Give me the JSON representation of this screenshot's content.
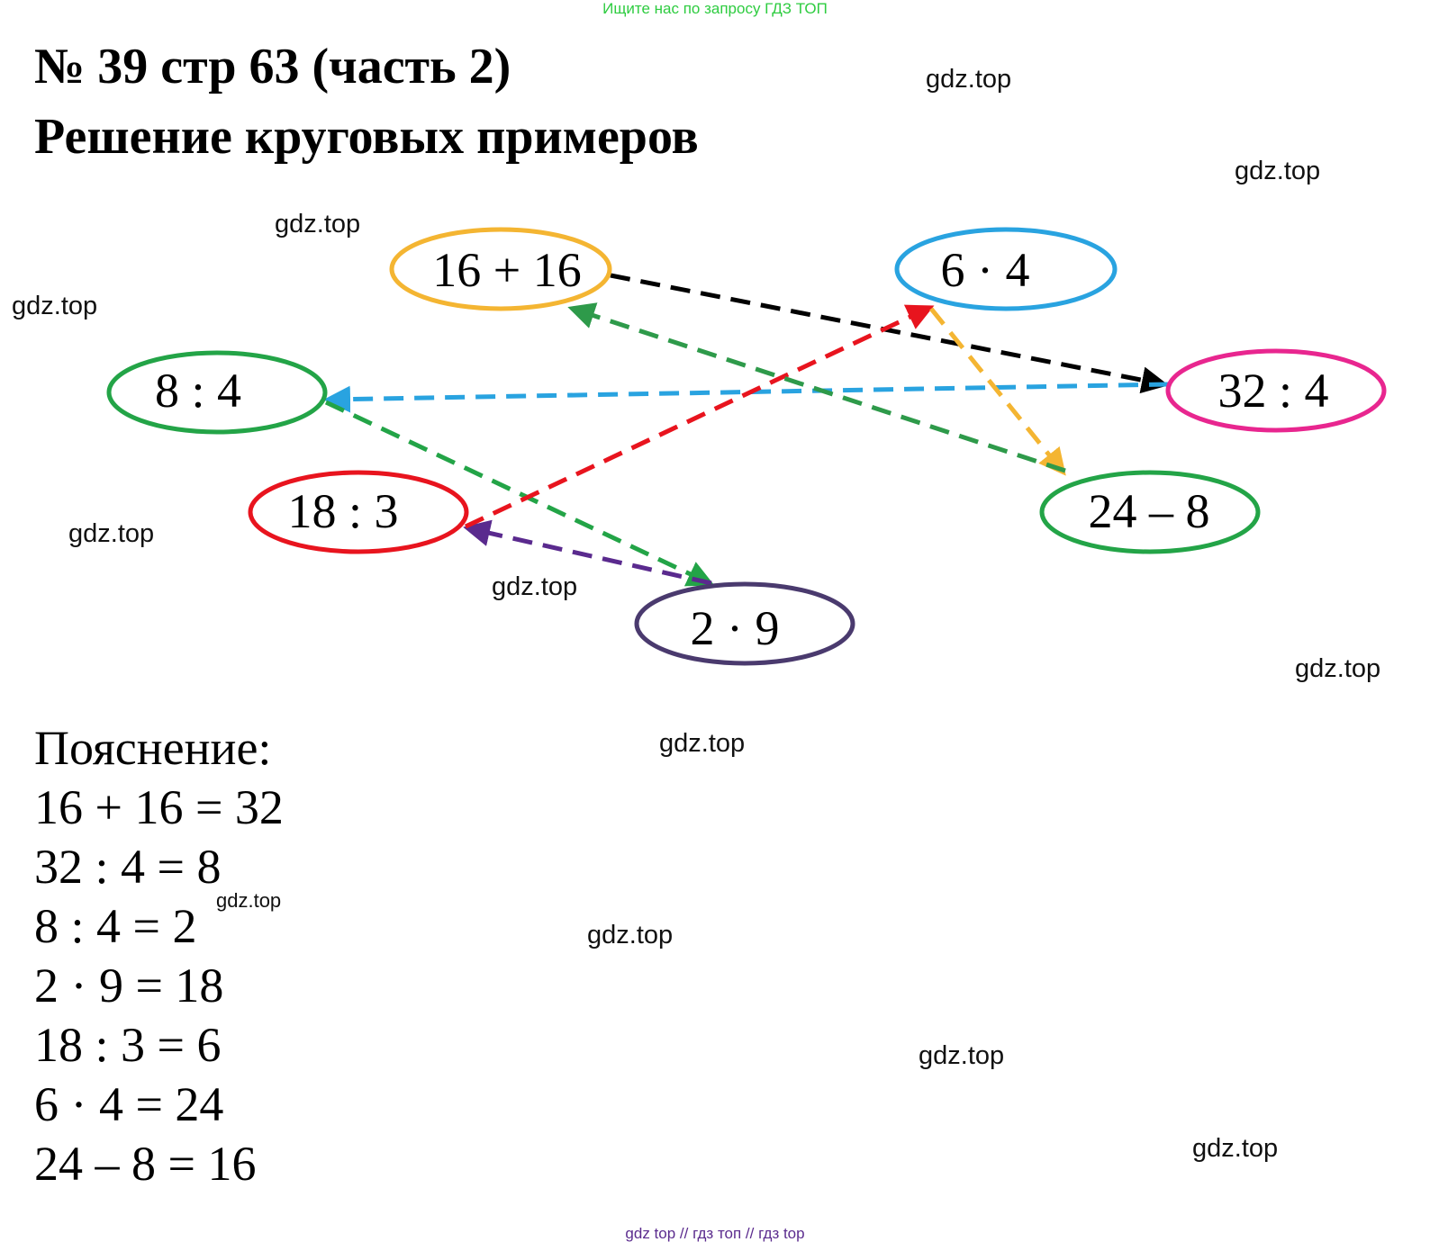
{
  "banner": "Ищите нас по запросу ГДЗ ТОП",
  "title_line1": "№ 39 стр 63 (часть 2)",
  "title_line2": "Решение круговых примеров",
  "watermark": "gdz.top",
  "footer": "gdz top  //  гдз топ  //  гдз top",
  "nodes": {
    "n1": {
      "label": "16 + 16",
      "color": "#f4b532"
    },
    "n2": {
      "label": "32 : 4",
      "color": "#e8268f"
    },
    "n3": {
      "label": "8 : 4",
      "color": "#23a447"
    },
    "n4": {
      "label": "2 · 9",
      "color": "#4a3a6e"
    },
    "n5": {
      "label": "18 : 3",
      "color": "#e8141e"
    },
    "n6": {
      "label": "6 · 4",
      "color": "#29a3e0"
    },
    "n7": {
      "label": "24 – 8",
      "color": "#23a447"
    }
  },
  "edges": [
    {
      "from": "16 + 16",
      "to": "32 : 4",
      "color": "#000000"
    },
    {
      "from": "32 : 4",
      "to": "8 : 4",
      "color": "#29a3e0"
    },
    {
      "from": "8 : 4",
      "to": "2 · 9",
      "color": "#23a447"
    },
    {
      "from": "2 · 9",
      "to": "18 : 3",
      "color": "#5a2a8e"
    },
    {
      "from": "18 : 3",
      "to": "6 · 4",
      "color": "#e8141e"
    },
    {
      "from": "6 · 4",
      "to": "24 – 8",
      "color": "#f4b532"
    },
    {
      "from": "24 – 8",
      "to": "16 + 16",
      "color": "#2e9a4a"
    }
  ],
  "explanation": {
    "title": "Пояснение:",
    "lines": [
      "16 + 16 = 32",
      "32 : 4 = 8",
      "8 : 4 = 2",
      "2 · 9 = 18",
      "18 : 3 = 6",
      "6 · 4 = 24",
      "24 – 8 = 16"
    ]
  }
}
